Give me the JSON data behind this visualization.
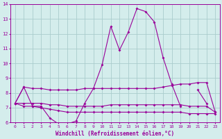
{
  "xlabel": "Windchill (Refroidissement éolien,°C)",
  "bg_color": "#d4edec",
  "grid_color": "#aacccc",
  "line_color": "#990099",
  "x": [
    0,
    1,
    2,
    3,
    4,
    5,
    6,
    7,
    8,
    9,
    10,
    11,
    12,
    13,
    14,
    15,
    16,
    17,
    18,
    19,
    20,
    21,
    22,
    23
  ],
  "line1": [
    7.3,
    8.4,
    7.1,
    7.1,
    6.3,
    5.9,
    5.9,
    6.1,
    7.3,
    8.3,
    9.9,
    12.5,
    10.9,
    12.1,
    13.7,
    13.5,
    12.8,
    10.4,
    8.6,
    7.1,
    null,
    8.2,
    7.3,
    null
  ],
  "line2": [
    7.3,
    8.4,
    8.3,
    8.3,
    8.2,
    8.2,
    8.2,
    8.2,
    8.3,
    8.3,
    8.3,
    8.3,
    8.3,
    8.3,
    8.3,
    8.3,
    8.3,
    8.4,
    8.5,
    8.6,
    8.6,
    8.7,
    8.7,
    6.7
  ],
  "line3": [
    7.3,
    7.3,
    7.3,
    7.3,
    7.2,
    7.2,
    7.1,
    7.1,
    7.1,
    7.1,
    7.1,
    7.2,
    7.2,
    7.2,
    7.2,
    7.2,
    7.2,
    7.2,
    7.2,
    7.2,
    7.1,
    7.1,
    7.1,
    6.7
  ],
  "line4": [
    7.3,
    7.1,
    7.1,
    7.0,
    6.9,
    6.8,
    6.7,
    6.7,
    6.7,
    6.7,
    6.7,
    6.7,
    6.7,
    6.7,
    6.7,
    6.7,
    6.7,
    6.7,
    6.7,
    6.7,
    6.6,
    6.6,
    6.6,
    6.6
  ],
  "ylim": [
    6,
    14
  ],
  "yticks": [
    6,
    7,
    8,
    9,
    10,
    11,
    12,
    13,
    14
  ],
  "xticks": [
    0,
    1,
    2,
    3,
    4,
    5,
    6,
    7,
    8,
    9,
    10,
    11,
    12,
    13,
    14,
    15,
    16,
    17,
    18,
    19,
    20,
    21,
    22,
    23
  ]
}
